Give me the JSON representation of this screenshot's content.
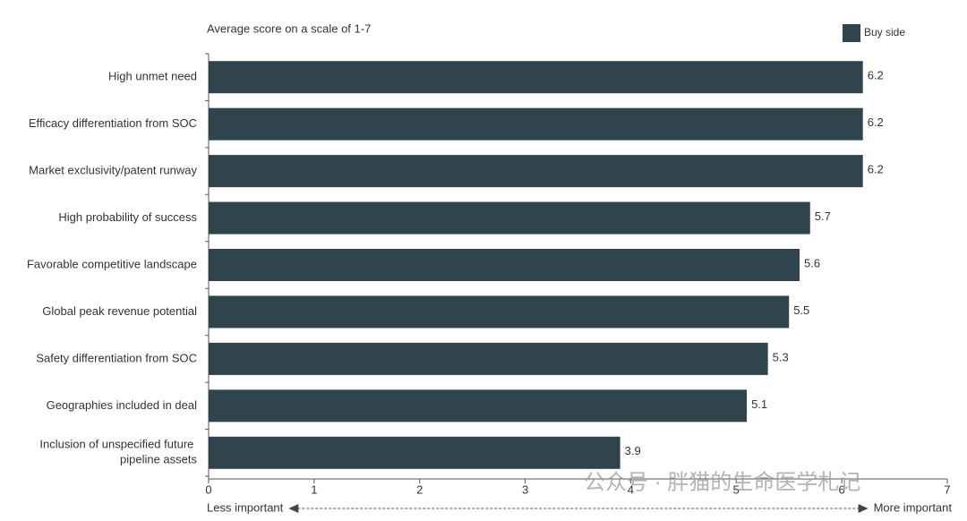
{
  "chart_data": {
    "type": "hbar",
    "subtitle": "Average score on a scale of 1-7",
    "categories": [
      "High unmet need",
      "Efficacy differentiation from SOC",
      "Market exclusivity/patent runway",
      "High probability of success",
      "Favorable competitive landscape",
      "Global peak revenue potential",
      "Safety differentiation from SOC",
      "Geographies included in deal",
      "Inclusion of unspecified future pipeline assets"
    ],
    "series": [
      {
        "name": "Buy side",
        "color": "#2f444d",
        "values": [
          6.2,
          6.2,
          6.2,
          5.7,
          5.6,
          5.5,
          5.3,
          5.1,
          3.9
        ]
      }
    ],
    "xlim": [
      0,
      7
    ],
    "xticks": [
      0,
      1,
      2,
      3,
      4,
      5,
      6,
      7
    ],
    "x_label_left": "Less important",
    "x_label_right": "More important",
    "legend": "top-right",
    "watermark": "公众号 · 胖猫的生命医学札记"
  }
}
